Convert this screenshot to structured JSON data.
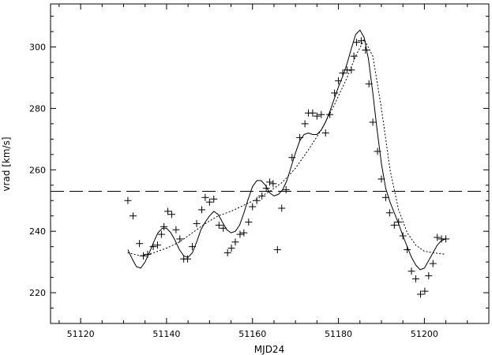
{
  "chart_data": {
    "type": "scatter",
    "xlabel": "MJD24",
    "ylabel": "vrad [km/s]",
    "xlim": [
      51113,
      51215
    ],
    "ylim": [
      210,
      314
    ],
    "xticks_major": [
      51120,
      51140,
      51160,
      51180,
      51200
    ],
    "xticks_minor_step": 5,
    "yticks_major": [
      220,
      240,
      260,
      280,
      300
    ],
    "yticks_minor_step": 5,
    "grid": false,
    "colors": {
      "ink": "#000000",
      "background": "#ffffff"
    },
    "reference_line": {
      "style": "dashed",
      "y": 253
    },
    "series": [
      {
        "style": "markers-plus",
        "x": [
          51131.0,
          51132.2,
          51133.7,
          51134.6,
          51135.6,
          51136.9,
          51137.9,
          51138.8,
          51139.4,
          51140.3,
          51141.2,
          51142.2,
          51143.1,
          51144.0,
          51144.9,
          51146.0,
          51147.0,
          51148.2,
          51149.0,
          51150.0,
          51151.0,
          51152.2,
          51153.2,
          51154.2,
          51155.1,
          51156.0,
          51157.1,
          51158.0,
          51159.1,
          51160.0,
          51161.0,
          51162.2,
          51163.2,
          51164.0,
          51164.8,
          51165.8,
          51166.8,
          51167.8,
          51169.2,
          51171.0,
          51172.2,
          51173.0,
          51174.0,
          51175.0,
          51176.0,
          51177.0,
          51178.0,
          51179.1,
          51180.0,
          51181.0,
          51182.0,
          51183.0,
          51183.6,
          51184.2,
          51185.3,
          51186.3,
          51187.1,
          51188.0,
          51189.1,
          51190.0,
          51191.0,
          51191.9,
          51193.0,
          51194.0,
          51195.0,
          51196.0,
          51197.0,
          51198.0,
          51199.1,
          51200.1,
          51201.0,
          51202.0,
          51203.0,
          51204.0,
          51205.0
        ],
        "y": [
          250.0,
          245.0,
          236.0,
          232.0,
          232.5,
          235.0,
          235.5,
          239.0,
          241.5,
          246.5,
          245.5,
          240.5,
          237.5,
          231.0,
          231.0,
          235.0,
          242.5,
          247.0,
          251.0,
          249.5,
          250.5,
          242.0,
          241.0,
          233.0,
          234.5,
          236.5,
          239.0,
          239.5,
          243.0,
          248.0,
          250.0,
          251.5,
          254.0,
          256.0,
          255.5,
          234.0,
          247.5,
          253.5,
          264.0,
          270.5,
          275.0,
          278.5,
          278.5,
          277.5,
          278.0,
          272.0,
          278.0,
          285.0,
          289.0,
          291.5,
          292.5,
          292.5,
          297.0,
          301.5,
          302.0,
          299.0,
          288.0,
          275.5,
          266.0,
          257.0,
          251.0,
          246.0,
          242.0,
          243.0,
          238.5,
          234.0,
          227.0,
          224.5,
          219.5,
          220.5,
          225.5,
          229.5,
          238.0,
          237.5,
          237.5
        ]
      },
      {
        "style": "solid",
        "x": [
          51131,
          51132,
          51133,
          51134,
          51135,
          51136,
          51137,
          51138,
          51139,
          51140,
          51141,
          51142,
          51143,
          51144,
          51145,
          51146,
          51147,
          51148,
          51149,
          51150,
          51151,
          51152,
          51153,
          51154,
          51155,
          51156,
          51157,
          51158,
          51159,
          51160,
          51161,
          51162,
          51163,
          51164,
          51165,
          51166,
          51167,
          51168,
          51169,
          51170,
          51171,
          51172,
          51173,
          51174,
          51175,
          51176,
          51177,
          51178,
          51179,
          51180,
          51181,
          51182,
          51183,
          51184,
          51185,
          51186,
          51187,
          51188,
          51189,
          51190,
          51191,
          51192,
          51193,
          51194,
          51195,
          51196,
          51197,
          51198,
          51199,
          51200,
          51201,
          51202,
          51203,
          51204,
          51205
        ],
        "y": [
          234,
          231,
          228.5,
          228,
          230,
          233,
          236.5,
          239.5,
          241,
          241,
          239.5,
          237,
          234,
          232,
          231.5,
          233,
          236.5,
          240.5,
          243,
          245,
          246.5,
          245.5,
          243,
          240.5,
          239.5,
          240,
          242,
          246,
          250.5,
          254.5,
          256.5,
          256.5,
          255,
          252.5,
          251.5,
          252,
          253.5,
          256.5,
          261,
          265.5,
          269.5,
          271.5,
          272,
          271.5,
          271.5,
          273,
          275.5,
          279,
          283,
          287,
          290.5,
          294.5,
          299.5,
          304,
          305.5,
          303,
          296,
          285,
          273,
          262,
          254,
          249.5,
          246,
          242.5,
          238.5,
          235,
          231.5,
          229,
          227.5,
          228,
          230.5,
          233,
          235.5,
          237,
          237.5
        ]
      },
      {
        "style": "dotted",
        "x": [
          51131,
          51134,
          51137,
          51140,
          51143,
          51146,
          51149,
          51152,
          51155,
          51158,
          51161,
          51164,
          51167,
          51170,
          51173,
          51176,
          51179,
          51182,
          51184,
          51186,
          51188,
          51190,
          51192,
          51194,
          51196,
          51198,
          51200,
          51202,
          51205
        ],
        "y": [
          233,
          232,
          233,
          234.5,
          236.5,
          239.5,
          242.5,
          245,
          246.5,
          248.5,
          250.5,
          253,
          256,
          260.5,
          266.5,
          273,
          281,
          290,
          297,
          302.5,
          297,
          280,
          260,
          247,
          239.5,
          235.5,
          233.5,
          233,
          232.5
        ]
      }
    ]
  }
}
